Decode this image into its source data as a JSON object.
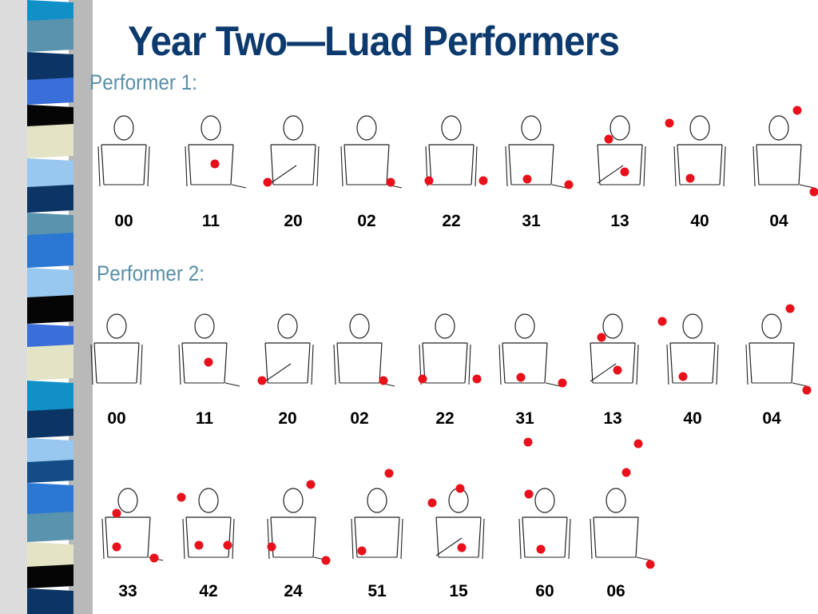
{
  "slide": {
    "title": "Year Two—Luad Performers"
  },
  "colors": {
    "title": "#0d3a6e",
    "performer_label": "#5a8fa8",
    "ball": "#e8101a",
    "figure_line": "#222222"
  },
  "sections": [
    {
      "label": "Performer 1:",
      "rows": [
        [
          "00",
          "11",
          "20",
          "02",
          "22",
          "31",
          "13",
          "40",
          "04"
        ]
      ]
    },
    {
      "label": "Performer 2:",
      "rows": [
        [
          "00",
          "11",
          "20",
          "02",
          "22",
          "31",
          "13",
          "40",
          "04"
        ],
        [
          "33",
          "42",
          "24",
          "51",
          "15",
          "60",
          "06"
        ]
      ]
    }
  ]
}
